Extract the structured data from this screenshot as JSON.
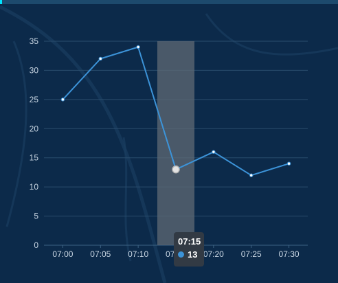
{
  "colors": {
    "background": "#0c2a4a",
    "line": "#3c93d8",
    "grid": "#2a4d6d",
    "axis_text": "#c9d6e3",
    "highlight_band": "#5f6a74",
    "tooltip_bg": "#323a44"
  },
  "tooltip": {
    "title": "07:15",
    "value": "13"
  },
  "chart_data": {
    "type": "line",
    "categories": [
      "07:00",
      "07:05",
      "07:10",
      "07:15",
      "07:20",
      "07:25",
      "07:30"
    ],
    "series": [
      {
        "values": [
          25,
          32,
          34,
          13,
          16,
          12,
          14
        ]
      }
    ],
    "y_ticks": [
      "0",
      "5",
      "10",
      "15",
      "20",
      "25",
      "30",
      "35"
    ],
    "ylim": [
      0,
      35
    ],
    "grid": true,
    "highlighted_category": "07:15"
  }
}
